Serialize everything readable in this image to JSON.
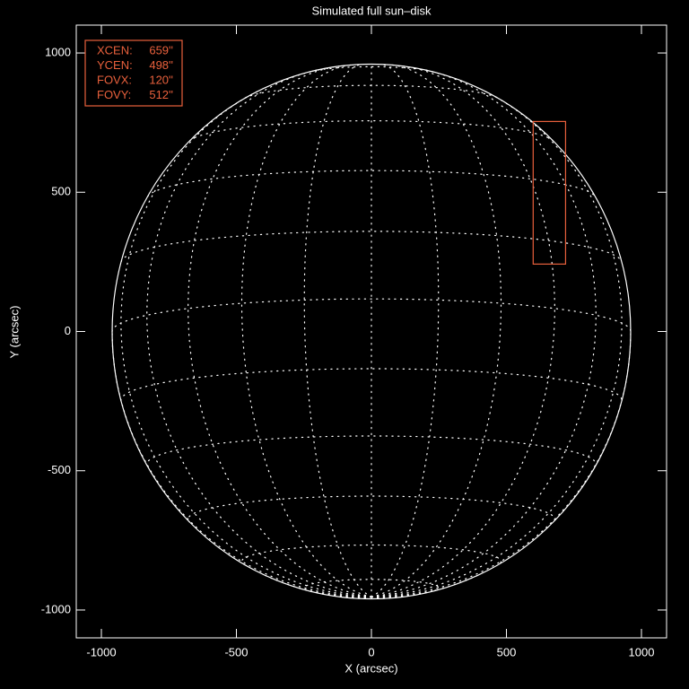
{
  "chart_data": {
    "type": "sun-disk",
    "title": "Simulated full sun–disk",
    "xlabel": "X (arcsec)",
    "ylabel": "Y (arcsec)",
    "xlim": [
      -1093,
      1093
    ],
    "ylim": [
      -1100,
      1100
    ],
    "xticks": [
      -1000,
      -500,
      0,
      500,
      1000
    ],
    "yticks": [
      -1000,
      -500,
      0,
      500,
      1000
    ],
    "solar_radius": 960,
    "b0": -7,
    "grid_spacing_deg": 15,
    "limb_color": "#ffffff",
    "grid_color": "#ffffff",
    "fov": {
      "color": "#e8603c",
      "names": [
        "XCEN:",
        "YCEN:",
        "FOVX:",
        "FOVY:"
      ],
      "values": [
        659,
        498,
        120,
        512
      ],
      "value_labels": [
        "659''",
        "498''",
        "120''",
        "512''"
      ]
    }
  }
}
